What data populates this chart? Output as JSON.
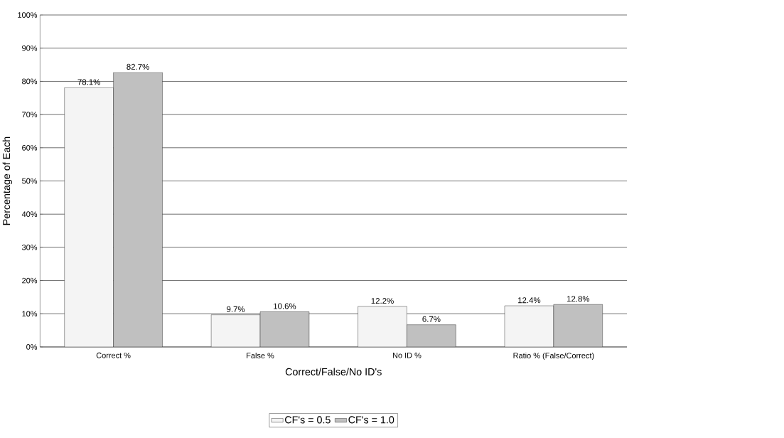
{
  "chart_data": {
    "type": "bar",
    "xlabel": "Correct/False/No ID's",
    "ylabel": "Percentage of Each",
    "categories": [
      "Correct %",
      "False %",
      "No ID %",
      "Ratio % (False/Correct)"
    ],
    "series": [
      {
        "name": "CF's = 0.5",
        "color": "#f4f4f4",
        "values": [
          78.1,
          9.7,
          12.2,
          12.4
        ],
        "value_labels": [
          "78.1%",
          "9.7%",
          "12.2%",
          "12.4%"
        ]
      },
      {
        "name": "CF's = 1.0",
        "color": "#c0c0c0",
        "values": [
          82.7,
          10.6,
          6.7,
          12.8
        ],
        "value_labels": [
          "82.7%",
          "10.6%",
          "6.7%",
          "12.8%"
        ]
      }
    ],
    "ylim": [
      0,
      100
    ],
    "yticks": [
      {
        "value": 0,
        "label": "0%"
      },
      {
        "value": 10,
        "label": "10%"
      },
      {
        "value": 20,
        "label": "20%"
      },
      {
        "value": 30,
        "label": "30%"
      },
      {
        "value": 40,
        "label": "40%"
      },
      {
        "value": 50,
        "label": "50%"
      },
      {
        "value": 60,
        "label": "60%"
      },
      {
        "value": 70,
        "label": "70%"
      },
      {
        "value": 80,
        "label": "80%"
      },
      {
        "value": 90,
        "label": "90%"
      },
      {
        "value": 100,
        "label": "100%"
      }
    ],
    "grid": "y",
    "legend": "bottom"
  }
}
